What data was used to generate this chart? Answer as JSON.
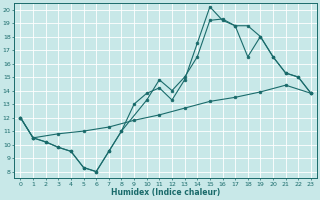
{
  "bg_color": "#c8e8e8",
  "line_color": "#1a6b6b",
  "xlabel": "Humidex (Indice chaleur)",
  "xlim": [
    -0.5,
    23.5
  ],
  "ylim": [
    7.5,
    20.5
  ],
  "xticks": [
    0,
    1,
    2,
    3,
    4,
    5,
    6,
    7,
    8,
    9,
    10,
    11,
    12,
    13,
    14,
    15,
    16,
    17,
    18,
    19,
    20,
    21,
    22,
    23
  ],
  "yticks": [
    8,
    9,
    10,
    11,
    12,
    13,
    14,
    15,
    16,
    17,
    18,
    19,
    20
  ],
  "line1_x": [
    0,
    1,
    2,
    3,
    4,
    5,
    6,
    7,
    8,
    9,
    10,
    11,
    12,
    13,
    14,
    15,
    16,
    17,
    18,
    19,
    20,
    21,
    22,
    23
  ],
  "line1_y": [
    12,
    10.5,
    10.2,
    9.8,
    9.5,
    8.3,
    8.0,
    9.5,
    11.0,
    13.0,
    13.8,
    14.2,
    13.3,
    14.8,
    17.5,
    20.2,
    19.2,
    18.8,
    18.8,
    18.0,
    16.5,
    15.3,
    15.0,
    13.8
  ],
  "line2_x": [
    0,
    1,
    2,
    3,
    4,
    5,
    6,
    7,
    8,
    10,
    11,
    12,
    13,
    14,
    15,
    16,
    17,
    18,
    19,
    20,
    21,
    22,
    23
  ],
  "line2_y": [
    12,
    10.5,
    10.2,
    9.8,
    9.5,
    8.3,
    8.0,
    9.5,
    11.0,
    13.3,
    14.8,
    14.0,
    15.0,
    16.5,
    19.2,
    19.3,
    18.8,
    16.5,
    18.0,
    16.5,
    15.3,
    15.0,
    13.8
  ],
  "line3_x": [
    0,
    1,
    3,
    5,
    7,
    9,
    11,
    13,
    15,
    17,
    19,
    21,
    23
  ],
  "line3_y": [
    12.0,
    10.5,
    10.8,
    11.0,
    11.3,
    11.8,
    12.2,
    12.7,
    13.2,
    13.5,
    13.9,
    14.4,
    13.8
  ]
}
